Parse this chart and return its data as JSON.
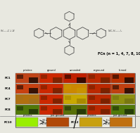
{
  "title_formula": "FCn (n = 1, 4, 7, 8, 10 ,12)",
  "col_labels": [
    "pristine",
    "ground",
    "annealed",
    "reground",
    "fumed"
  ],
  "row_labels": [
    "FC1",
    "FC4",
    "FC7",
    "FC8"
  ],
  "bg_color": "#e8e8e0",
  "grid_bg": "#b0b0b0",
  "cell_data": {
    "FC1": [
      "#c04418",
      "#cc2800",
      "#c02000",
      "#bb2800",
      "#b83000"
    ],
    "FC4": [
      "#c84010",
      "#cc2800",
      "#cc8800",
      "#bb2800",
      "#c04010"
    ],
    "FC7": [
      "#b07010",
      "#cc2800",
      "#c8a800",
      "#bb2800",
      "#909010"
    ],
    "FC8": [
      "#507808",
      "#cc2800",
      "#587008",
      "#bb2800",
      "#507808"
    ]
  },
  "dark_patches": {
    "FC1": [
      "#080200",
      "#662000",
      "#080200",
      "#662000",
      "#080200"
    ],
    "FC4": [
      "#080200",
      "#662000",
      "#c89800",
      "#662000",
      "#080200"
    ],
    "FC7": [
      "#a07020",
      "#662000",
      "#a08000",
      "#662000",
      "#707010"
    ],
    "FC8": [
      "#182808",
      "#662000",
      "#182808",
      "#662000",
      "#182808"
    ]
  },
  "fc10_pristine": "#99ee00",
  "fc10_ground": "#b04808",
  "fc12_pristine": "#c8a010",
  "fc12_ground": "#c07010",
  "text_color": "#000000",
  "border_color": "#888888"
}
